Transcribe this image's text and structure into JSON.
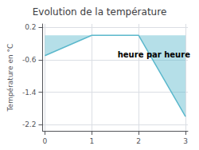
{
  "chart_data": {
    "type": "line",
    "title": "Evolution de la température",
    "ylabel": "Température en °C",
    "annotation": {
      "text": "heure par heure",
      "x": 1.55,
      "y": -0.48
    },
    "x": [
      0,
      1,
      2,
      3
    ],
    "values": [
      -0.5,
      0.0,
      0.0,
      -2.0
    ],
    "color": "#5bb8cc",
    "xlim": [
      -0.05,
      3.05
    ],
    "xticks": [
      0,
      1,
      2,
      3
    ],
    "ylim": [
      -2.35,
      0.28
    ],
    "yticks": [
      0.2,
      -0.6,
      -1.4,
      -2.2
    ],
    "grid": true
  }
}
